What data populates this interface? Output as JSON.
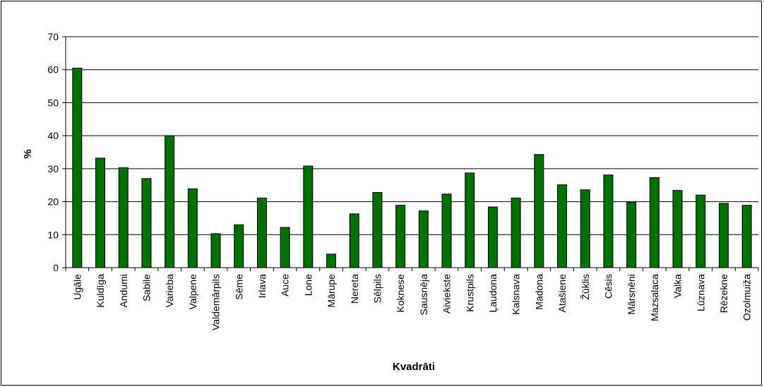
{
  "chart_data": {
    "type": "bar",
    "title": "",
    "xlabel": "Kvadrāti",
    "ylabel": "%",
    "ylim": [
      0,
      70
    ],
    "yticks": [
      0,
      10,
      20,
      30,
      40,
      50,
      60,
      70
    ],
    "grid": true,
    "legend": "none",
    "bar_color": "#007000",
    "categories": [
      "Ugāle",
      "Kuldīga",
      "Andumi",
      "Sabile",
      "Varieba",
      "Valpene",
      "Valdemārpils",
      "Sēme",
      "Irlava",
      "Auce",
      "Lone",
      "Mārupe",
      "Nereta",
      "Sēlpils",
      "Koknese",
      "Sausnēja",
      "Aiviekste",
      "Krustpils",
      "Ļaudona",
      "Kalsnava",
      "Madona",
      "Atašiene",
      "Žūklis",
      "Cēsis",
      "Mārsnēni",
      "Mazsalaca",
      "Valka",
      "Lūznava",
      "Rēzekne",
      "Ozolmuiža"
    ],
    "values": [
      60.5,
      33.2,
      30.3,
      27.0,
      40.0,
      23.9,
      10.3,
      13.0,
      21.1,
      12.2,
      30.8,
      4.1,
      16.3,
      22.8,
      18.9,
      17.2,
      22.3,
      28.7,
      18.4,
      21.1,
      34.3,
      25.1,
      23.6,
      28.1,
      19.8,
      27.3,
      23.4,
      22.0,
      19.5,
      18.9
    ]
  }
}
